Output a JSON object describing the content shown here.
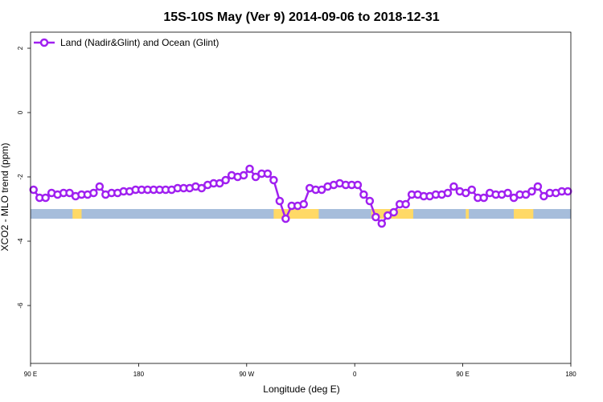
{
  "chart_data": {
    "type": "line",
    "title": "15S-10S May (Ver 9)   2014-09-06 to 2018-12-31",
    "xlabel": "Longitude (deg E)",
    "ylabel": "XCO2 - MLO trend (ppm)",
    "xlim": [
      90,
      450
    ],
    "ylim": [
      -7.8,
      2.5
    ],
    "x_ticks": [
      {
        "value": 90,
        "label": "90 E"
      },
      {
        "value": 162,
        "label": "180"
      },
      {
        "value": 234,
        "label": "90 W"
      },
      {
        "value": 306,
        "label": "0"
      },
      {
        "value": 378,
        "label": "90 E"
      },
      {
        "value": 450,
        "label": "180"
      }
    ],
    "y_ticks": [
      {
        "value": 2,
        "label": "2"
      },
      {
        "value": 0,
        "label": "0"
      },
      {
        "value": -2,
        "label": "-2"
      },
      {
        "value": -4,
        "label": "-4"
      },
      {
        "value": -6,
        "label": "-6"
      }
    ],
    "grid": false,
    "legend_position": "top-left",
    "colors": {
      "series": "#a020f0",
      "ocean": "#a6bddb",
      "land": "#ffd966"
    },
    "series": [
      {
        "name": "Land (Nadir&Glint) and Ocean (Glint)",
        "x": [
          92,
          96,
          100,
          104,
          108,
          112,
          116,
          120,
          124,
          128,
          132,
          136,
          140,
          144,
          148,
          152,
          156,
          160,
          164,
          168,
          172,
          176,
          180,
          184,
          188,
          192,
          196,
          200,
          204,
          208,
          212,
          216,
          220,
          224,
          228,
          232,
          236,
          240,
          244,
          248,
          252,
          256,
          260,
          264,
          268,
          272,
          276,
          280,
          284,
          288,
          292,
          296,
          300,
          304,
          308,
          312,
          316,
          320,
          324,
          328,
          332,
          336,
          340,
          344,
          348,
          352,
          356,
          360,
          364,
          368,
          372,
          376,
          380,
          384,
          388,
          392,
          396,
          400,
          404,
          408,
          412,
          416,
          420,
          424,
          428,
          432,
          436,
          440,
          444,
          448
        ],
        "y": [
          -2.4,
          -2.65,
          -2.65,
          -2.5,
          -2.55,
          -2.5,
          -2.5,
          -2.6,
          -2.55,
          -2.55,
          -2.5,
          -2.3,
          -2.55,
          -2.5,
          -2.5,
          -2.45,
          -2.45,
          -2.4,
          -2.4,
          -2.4,
          -2.4,
          -2.4,
          -2.4,
          -2.4,
          -2.35,
          -2.35,
          -2.35,
          -2.3,
          -2.35,
          -2.25,
          -2.2,
          -2.2,
          -2.1,
          -1.95,
          -2.0,
          -1.95,
          -1.75,
          -2.0,
          -1.9,
          -1.9,
          -2.1,
          -2.75,
          -3.3,
          -2.9,
          -2.9,
          -2.85,
          -2.35,
          -2.4,
          -2.4,
          -2.3,
          -2.25,
          -2.2,
          -2.25,
          -2.25,
          -2.25,
          -2.55,
          -2.75,
          -3.25,
          -3.45,
          -3.2,
          -3.1,
          -2.85,
          -2.85,
          -2.55,
          -2.55,
          -2.6,
          -2.6,
          -2.55,
          -2.55,
          -2.5,
          -2.3,
          -2.45,
          -2.5,
          -2.4,
          -2.65,
          -2.65,
          -2.5,
          -2.55,
          -2.55,
          -2.5,
          -2.65,
          -2.55,
          -2.55,
          -2.45,
          -2.3,
          -2.6,
          -2.5,
          -2.5,
          -2.45,
          -2.45
        ]
      }
    ],
    "surface_band": {
      "y_range": [
        -3.3,
        -3.0
      ],
      "land_spans": [
        [
          118,
          124
        ],
        [
          252,
          282
        ],
        [
          317,
          345
        ],
        [
          380,
          382
        ],
        [
          412,
          425
        ]
      ]
    }
  }
}
